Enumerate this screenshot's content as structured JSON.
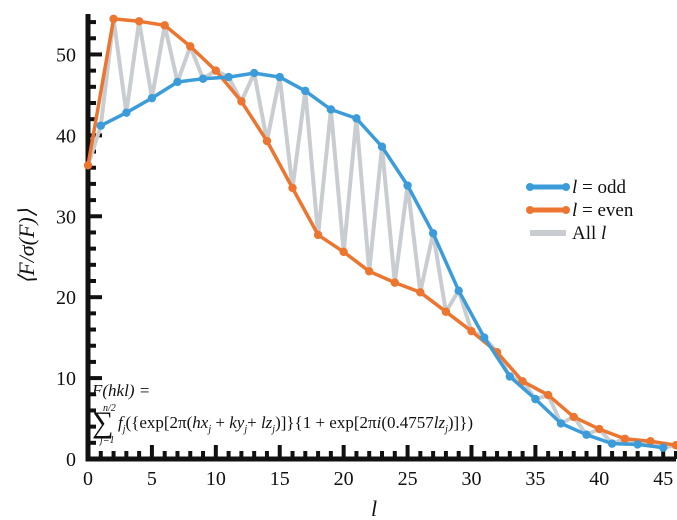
{
  "chart_data": {
    "type": "line",
    "title": "",
    "xlabel": "l",
    "ylabel": "⟨F/σ(F)⟩",
    "xlim": [
      0,
      46
    ],
    "ylim": [
      0,
      55
    ],
    "x_ticks": [
      0,
      5,
      10,
      15,
      20,
      25,
      30,
      35,
      40,
      45
    ],
    "y_ticks": [
      0,
      10,
      20,
      30,
      40,
      50
    ],
    "grid": false,
    "legend_position": "right",
    "legend": [
      {
        "label_var": "l",
        "label_rest": " = odd",
        "color": "#3b9cd9"
      },
      {
        "label_var": "l",
        "label_rest": " = even",
        "color": "#ec7530"
      },
      {
        "label_var": "l",
        "label_rest": "All ",
        "color": "#c9cdd1"
      }
    ],
    "series": [
      {
        "name": "l = odd",
        "color": "#3b9cd9",
        "x": [
          1,
          3,
          5,
          7,
          9,
          11,
          13,
          15,
          17,
          19,
          21,
          23,
          25,
          27,
          29,
          31,
          33,
          35,
          37,
          39,
          41,
          43,
          45
        ],
        "y": [
          41.2,
          42.8,
          44.6,
          46.6,
          47.0,
          47.2,
          47.7,
          47.2,
          45.5,
          43.2,
          42.1,
          38.6,
          33.8,
          27.9,
          20.8,
          15.0,
          10.2,
          7.4,
          4.4,
          3.0,
          1.9,
          1.8,
          1.4
        ]
      },
      {
        "name": "l = even",
        "color": "#ec7530",
        "x": [
          0,
          2,
          4,
          6,
          8,
          10,
          12,
          14,
          16,
          18,
          20,
          22,
          24,
          26,
          28,
          30,
          32,
          34,
          36,
          38,
          40,
          42,
          44,
          46
        ],
        "y": [
          36.3,
          54.4,
          54.1,
          53.6,
          51.0,
          48.0,
          44.2,
          39.3,
          33.5,
          27.7,
          25.6,
          23.2,
          21.8,
          20.6,
          18.2,
          15.8,
          13.2,
          9.6,
          7.9,
          5.2,
          3.7,
          2.5,
          2.2,
          1.7
        ]
      },
      {
        "name": "All l",
        "color": "#c9cdd1",
        "x": [
          0,
          1,
          2,
          3,
          4,
          5,
          6,
          7,
          8,
          9,
          10,
          11,
          12,
          13,
          14,
          15,
          16,
          17,
          18,
          19,
          20,
          21,
          22,
          23,
          24,
          25,
          26,
          27,
          28,
          29,
          30,
          31,
          32,
          33,
          34,
          35,
          36,
          37,
          38,
          39,
          40,
          41,
          42,
          43,
          44,
          45,
          46
        ],
        "y": [
          36.3,
          41.2,
          54.4,
          42.8,
          54.1,
          44.6,
          53.6,
          46.6,
          51.0,
          47.0,
          48.0,
          47.2,
          44.2,
          47.7,
          39.3,
          47.2,
          33.5,
          45.5,
          27.7,
          43.2,
          25.6,
          42.1,
          23.2,
          38.6,
          21.8,
          33.8,
          20.6,
          27.9,
          18.2,
          20.8,
          15.8,
          15.0,
          13.2,
          10.2,
          9.6,
          7.4,
          7.9,
          4.4,
          5.2,
          3.0,
          3.7,
          1.9,
          2.5,
          1.8,
          2.2,
          1.4,
          1.7
        ]
      }
    ],
    "annotation": {
      "line1": "F(hkl) =",
      "sum_top": "n/2",
      "sum_bottom": "j=1",
      "line2": "f_j({exp[2π(hx_j + ky_j + lz_j)]}{1 + exp[2πi(0.4757lz_j)]})"
    }
  }
}
